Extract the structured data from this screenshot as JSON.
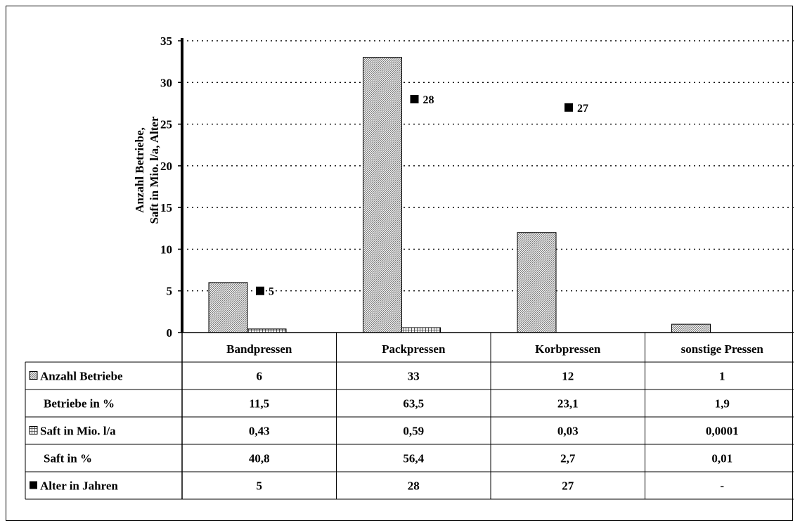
{
  "chart_data": {
    "type": "bar",
    "ylabel_lines": [
      "Anzahl Betriebe,",
      "Saft in Mio. l/a, Alter"
    ],
    "ylim": [
      0,
      35
    ],
    "yticks": [
      0,
      5,
      10,
      15,
      20,
      25,
      30,
      35
    ],
    "grid": true,
    "categories": [
      "Bandpressen",
      "Packpressen",
      "Korbpressen",
      "sonstige Pressen"
    ],
    "bar_series": [
      {
        "name": "Anzahl Betriebe",
        "values": [
          6,
          33,
          12,
          1
        ],
        "pattern": "dense-diagonal"
      },
      {
        "name": "Saft in Mio. l/a",
        "values": [
          0.43,
          0.59,
          0.03,
          0.0001
        ],
        "pattern": "grid"
      }
    ],
    "marker_series": {
      "name": "Alter in Jahren",
      "values": [
        5,
        28,
        27,
        null
      ],
      "labels": [
        "5",
        "28",
        "27",
        ""
      ]
    },
    "table": {
      "rows": [
        {
          "label": "Anzahl Betriebe",
          "legend": "bar1",
          "cells": [
            "6",
            "33",
            "12",
            "1"
          ]
        },
        {
          "label": "Betriebe in %",
          "legend": "",
          "cells": [
            "11,5",
            "63,5",
            "23,1",
            "1,9"
          ]
        },
        {
          "label": "Saft in Mio. l/a",
          "legend": "bar2",
          "cells": [
            "0,43",
            "0,59",
            "0,03",
            "0,0001"
          ]
        },
        {
          "label": "Saft in %",
          "legend": "",
          "cells": [
            "40,8",
            "56,4",
            "2,7",
            "0,01"
          ]
        },
        {
          "label": "Alter in Jahren",
          "legend": "marker",
          "cells": [
            "5",
            "28",
            "27",
            "-"
          ]
        }
      ]
    }
  },
  "colors": {
    "bar_fill": "#d9d9d9",
    "marker": "#000000",
    "line": "#000000"
  }
}
